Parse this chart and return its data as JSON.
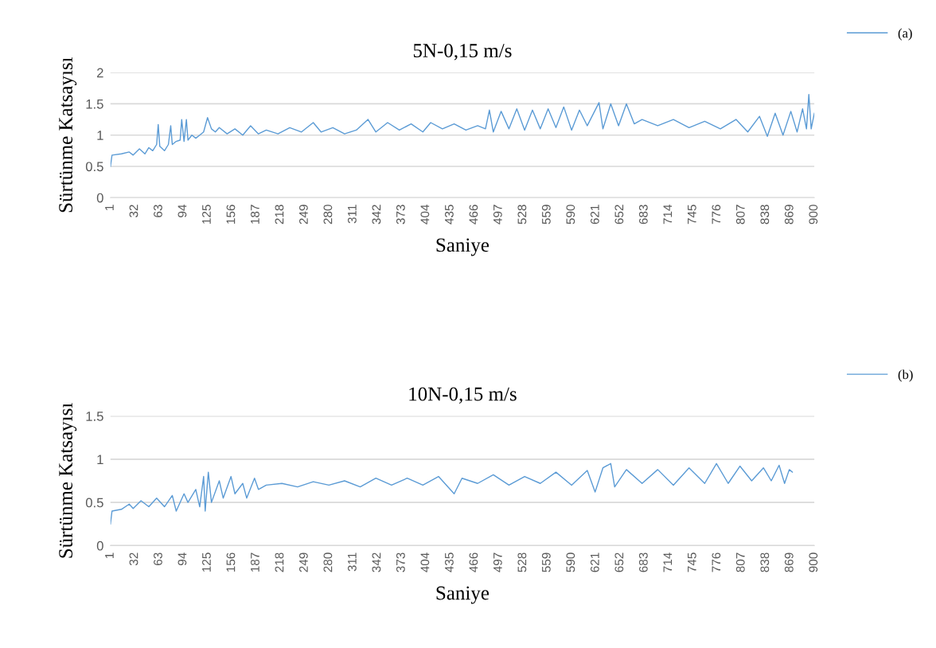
{
  "chart_data": [
    {
      "type": "line",
      "title": "5N-0,15 m/s",
      "xlabel": "Saniye",
      "ylabel": "Sürtünme Katsayısı",
      "xlim": [
        1,
        900
      ],
      "xticks": [
        1,
        32,
        63,
        94,
        125,
        156,
        187,
        218,
        249,
        280,
        311,
        342,
        373,
        404,
        435,
        466,
        497,
        528,
        559,
        590,
        621,
        652,
        683,
        714,
        745,
        776,
        807,
        838,
        869,
        900
      ],
      "ylim": [
        0,
        2
      ],
      "yticks": [
        0,
        0.5,
        1,
        1.5,
        2
      ],
      "grid": "y",
      "legend": "top right",
      "marker": "none",
      "line_style": "solid",
      "series": [
        {
          "name": "(a)",
          "color": "#5b9bd5",
          "x": [
            1,
            3,
            15,
            25,
            30,
            38,
            45,
            50,
            55,
            60,
            62,
            64,
            70,
            75,
            78,
            80,
            85,
            90,
            92,
            95,
            98,
            100,
            105,
            110,
            115,
            120,
            125,
            130,
            135,
            140,
            150,
            160,
            170,
            180,
            190,
            200,
            215,
            230,
            245,
            260,
            270,
            285,
            300,
            315,
            330,
            340,
            355,
            370,
            385,
            400,
            410,
            425,
            440,
            455,
            470,
            480,
            485,
            490,
            500,
            510,
            520,
            530,
            540,
            550,
            560,
            570,
            580,
            590,
            600,
            610,
            625,
            630,
            640,
            650,
            660,
            670,
            680,
            700,
            720,
            740,
            760,
            780,
            800,
            815,
            830,
            840,
            850,
            860,
            870,
            878,
            885,
            890,
            893,
            896,
            900
          ],
          "values": [
            0.5,
            0.68,
            0.7,
            0.73,
            0.68,
            0.78,
            0.7,
            0.8,
            0.75,
            0.85,
            1.17,
            0.82,
            0.75,
            0.85,
            1.15,
            0.85,
            0.9,
            0.92,
            1.25,
            0.9,
            1.25,
            0.92,
            1.0,
            0.95,
            1.0,
            1.05,
            1.28,
            1.1,
            1.05,
            1.12,
            1.02,
            1.1,
            1.0,
            1.15,
            1.02,
            1.08,
            1.02,
            1.12,
            1.05,
            1.2,
            1.05,
            1.12,
            1.02,
            1.08,
            1.25,
            1.05,
            1.2,
            1.08,
            1.18,
            1.05,
            1.2,
            1.1,
            1.18,
            1.08,
            1.15,
            1.1,
            1.4,
            1.05,
            1.38,
            1.1,
            1.42,
            1.08,
            1.4,
            1.1,
            1.42,
            1.12,
            1.45,
            1.08,
            1.4,
            1.15,
            1.52,
            1.1,
            1.5,
            1.15,
            1.5,
            1.18,
            1.25,
            1.15,
            1.25,
            1.12,
            1.22,
            1.1,
            1.25,
            1.05,
            1.3,
            0.98,
            1.35,
            1.0,
            1.38,
            1.05,
            1.42,
            1.1,
            1.65,
            1.1,
            1.35
          ]
        }
      ]
    },
    {
      "type": "line",
      "title": "10N-0,15 m/s",
      "xlabel": "Saniye",
      "ylabel": "Sürtünme Katsayısı",
      "xlim": [
        1,
        900
      ],
      "xticks": [
        1,
        32,
        63,
        94,
        125,
        156,
        187,
        218,
        249,
        280,
        311,
        342,
        373,
        404,
        435,
        466,
        497,
        528,
        559,
        590,
        621,
        652,
        683,
        714,
        745,
        776,
        807,
        838,
        869,
        900
      ],
      "ylim": [
        0,
        1.5
      ],
      "yticks": [
        0,
        0.5,
        1,
        1.5
      ],
      "grid": "y",
      "legend": "top right",
      "marker": "none",
      "line_style": "solid",
      "series": [
        {
          "name": "(b)",
          "color": "#5b9bd5",
          "x": [
            1,
            3,
            15,
            25,
            30,
            40,
            50,
            60,
            70,
            80,
            85,
            95,
            100,
            110,
            115,
            120,
            122,
            126,
            130,
            140,
            145,
            155,
            160,
            170,
            175,
            185,
            190,
            200,
            220,
            240,
            260,
            280,
            300,
            320,
            340,
            360,
            380,
            400,
            420,
            440,
            450,
            470,
            490,
            510,
            530,
            550,
            570,
            590,
            610,
            620,
            630,
            640,
            645,
            660,
            680,
            700,
            720,
            740,
            760,
            775,
            790,
            805,
            820,
            835,
            845,
            855,
            862,
            868,
            872
          ],
          "values": [
            0.25,
            0.4,
            0.42,
            0.48,
            0.43,
            0.52,
            0.45,
            0.55,
            0.45,
            0.58,
            0.4,
            0.6,
            0.5,
            0.65,
            0.45,
            0.8,
            0.4,
            0.85,
            0.5,
            0.75,
            0.55,
            0.8,
            0.6,
            0.72,
            0.55,
            0.78,
            0.65,
            0.7,
            0.72,
            0.68,
            0.74,
            0.7,
            0.75,
            0.68,
            0.78,
            0.7,
            0.78,
            0.7,
            0.8,
            0.6,
            0.78,
            0.72,
            0.82,
            0.7,
            0.8,
            0.72,
            0.85,
            0.7,
            0.87,
            0.62,
            0.9,
            0.95,
            0.68,
            0.88,
            0.72,
            0.88,
            0.7,
            0.9,
            0.72,
            0.95,
            0.72,
            0.92,
            0.75,
            0.9,
            0.75,
            0.93,
            0.72,
            0.88,
            0.85
          ]
        }
      ]
    }
  ]
}
